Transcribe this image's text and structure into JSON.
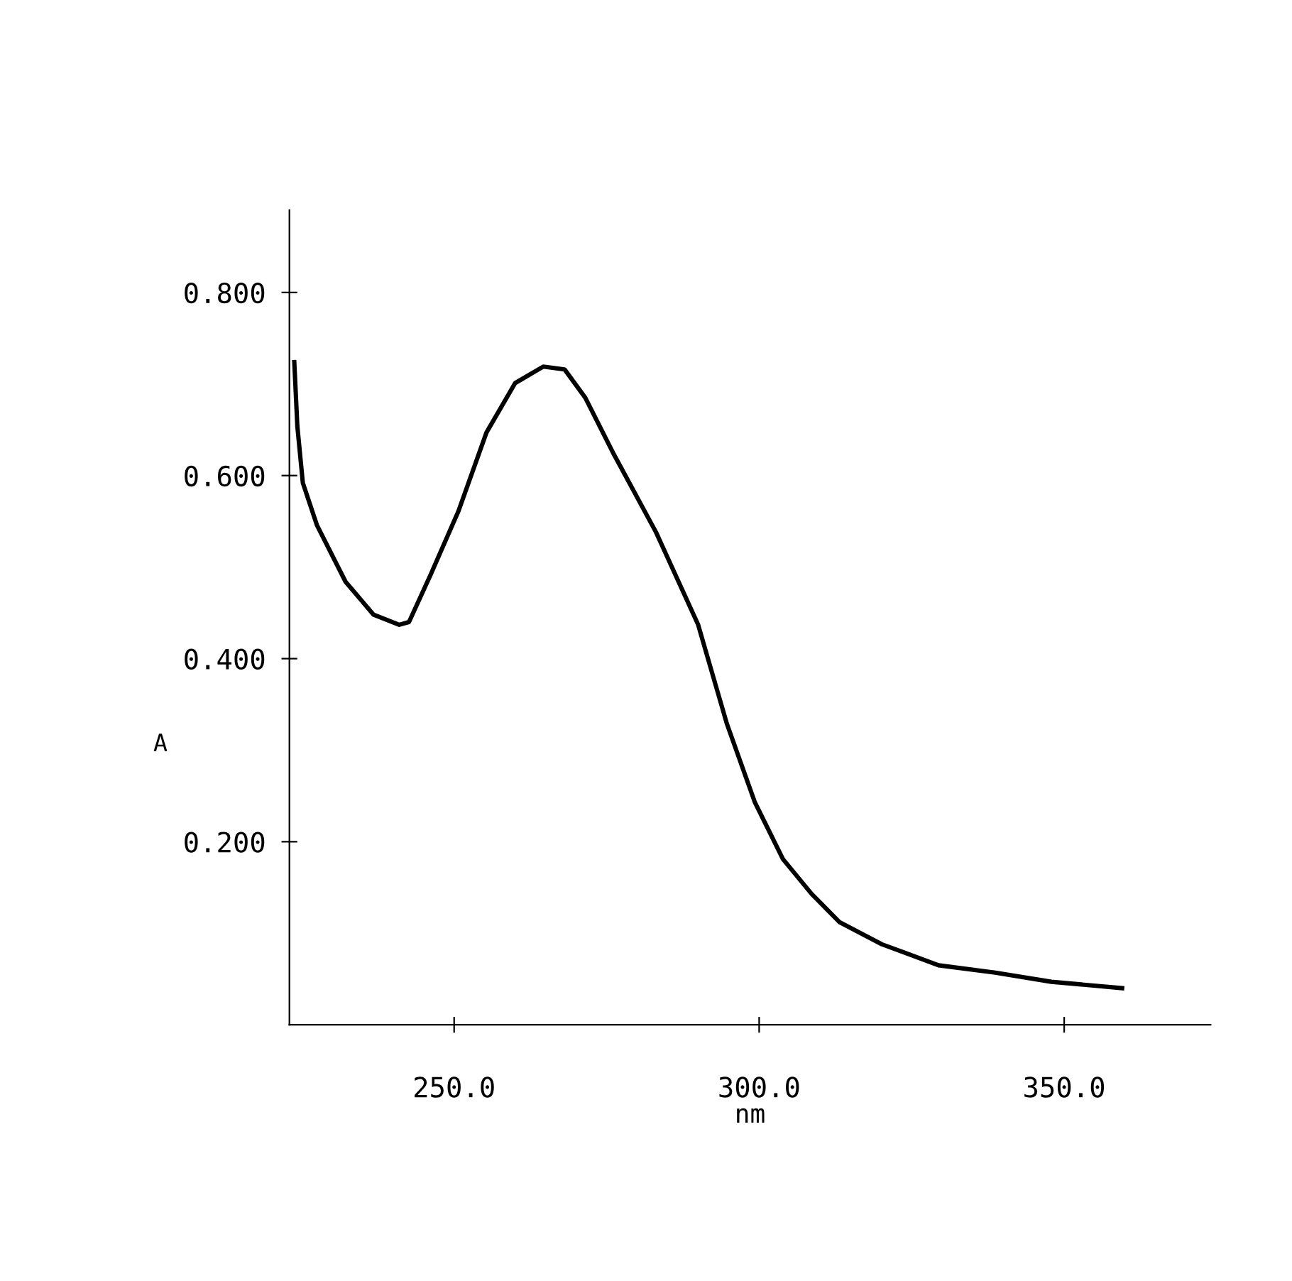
{
  "chart_data": {
    "type": "line",
    "xlabel": "nm",
    "ylabel": "A",
    "x": [
      223.8,
      224.3,
      225.2,
      227.5,
      232.2,
      236.8,
      241.0,
      242.6,
      246.1,
      250.7,
      255.3,
      260.0,
      264.6,
      268.1,
      271.5,
      276.2,
      283.1,
      290.0,
      294.7,
      299.3,
      303.9,
      308.6,
      313.2,
      320.1,
      329.4,
      338.7,
      347.9,
      359.5
    ],
    "series": [
      {
        "color": "#000000",
        "values": [
          0.724,
          0.654,
          0.592,
          0.546,
          0.484,
          0.448,
          0.437,
          0.44,
          0.491,
          0.561,
          0.647,
          0.701,
          0.719,
          0.716,
          0.685,
          0.623,
          0.538,
          0.437,
          0.329,
          0.243,
          0.181,
          0.143,
          0.112,
          0.088,
          0.065,
          0.057,
          0.047,
          0.04
        ]
      }
    ],
    "xlim": [
      223,
      374
    ],
    "ylim": [
      0,
      0.89
    ],
    "xticks": [
      {
        "value": 250,
        "label": "250.0"
      },
      {
        "value": 300,
        "label": "300.0"
      },
      {
        "value": 350,
        "label": "350.0"
      }
    ],
    "yticks": [
      {
        "value": 0.2,
        "label": "0.200"
      },
      {
        "value": 0.4,
        "label": "0.400"
      },
      {
        "value": 0.6,
        "label": "0.600"
      },
      {
        "value": 0.8,
        "label": "0.800"
      }
    ],
    "grid": false,
    "legend": false
  }
}
